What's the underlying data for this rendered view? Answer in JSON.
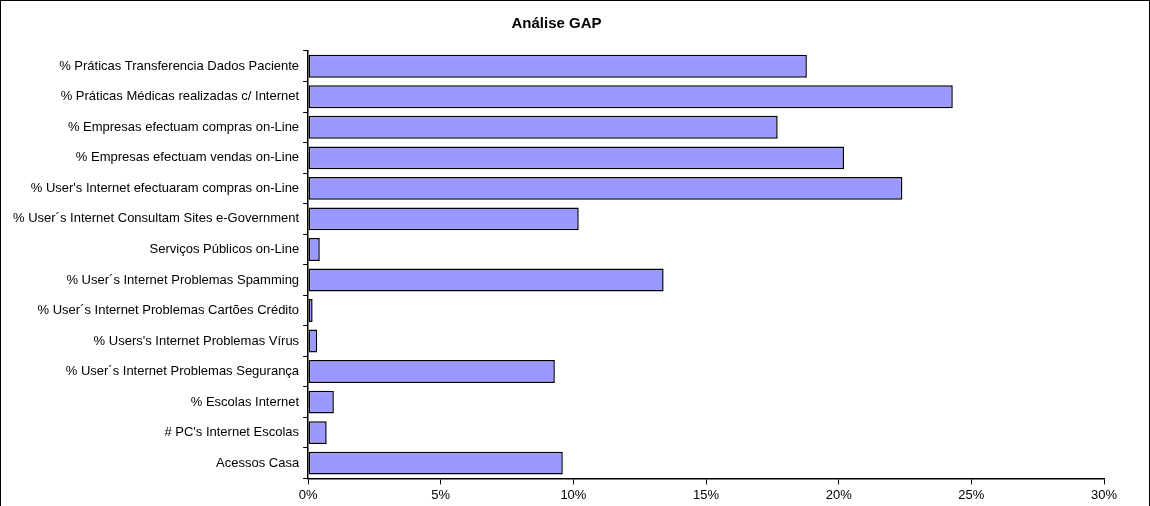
{
  "chart_data": {
    "type": "bar",
    "orientation": "horizontal",
    "title": "Análise GAP",
    "categories": [
      "% Práticas Transferencia Dados Paciente",
      "% Práticas Médicas realizadas c/ Internet",
      "% Empresas efectuam compras on-Line",
      "% Empresas efectuam vendas on-Line",
      "% User's Internet efectuaram compras on-Line",
      "% User´s Internet Consultam Sites e-Government",
      "Serviços Públicos on-Line",
      "% User´s Internet Problemas Spamming",
      "% User´s Internet Problemas Cartões Crédito",
      "% Users's Internet Problemas Vírus",
      "% User´s Internet Problemas Segurança",
      "% Escolas Internet",
      "# PC's Internet Escolas",
      "Acessos Casa"
    ],
    "values": [
      18.8,
      24.3,
      17.7,
      20.2,
      22.4,
      10.2,
      0.44,
      13.4,
      0.17,
      0.34,
      9.3,
      0.97,
      0.7,
      9.6
    ],
    "color": "#9999ff",
    "xlim": [
      0,
      30
    ],
    "xticks": [
      {
        "value": 0,
        "label": "0%"
      },
      {
        "value": 5,
        "label": "5%"
      },
      {
        "value": 10,
        "label": "10%"
      },
      {
        "value": 15,
        "label": "15%"
      },
      {
        "value": 20,
        "label": "20%"
      },
      {
        "value": 25,
        "label": "25%"
      },
      {
        "value": 30,
        "label": "30%"
      }
    ],
    "grid": false,
    "legend": false
  }
}
